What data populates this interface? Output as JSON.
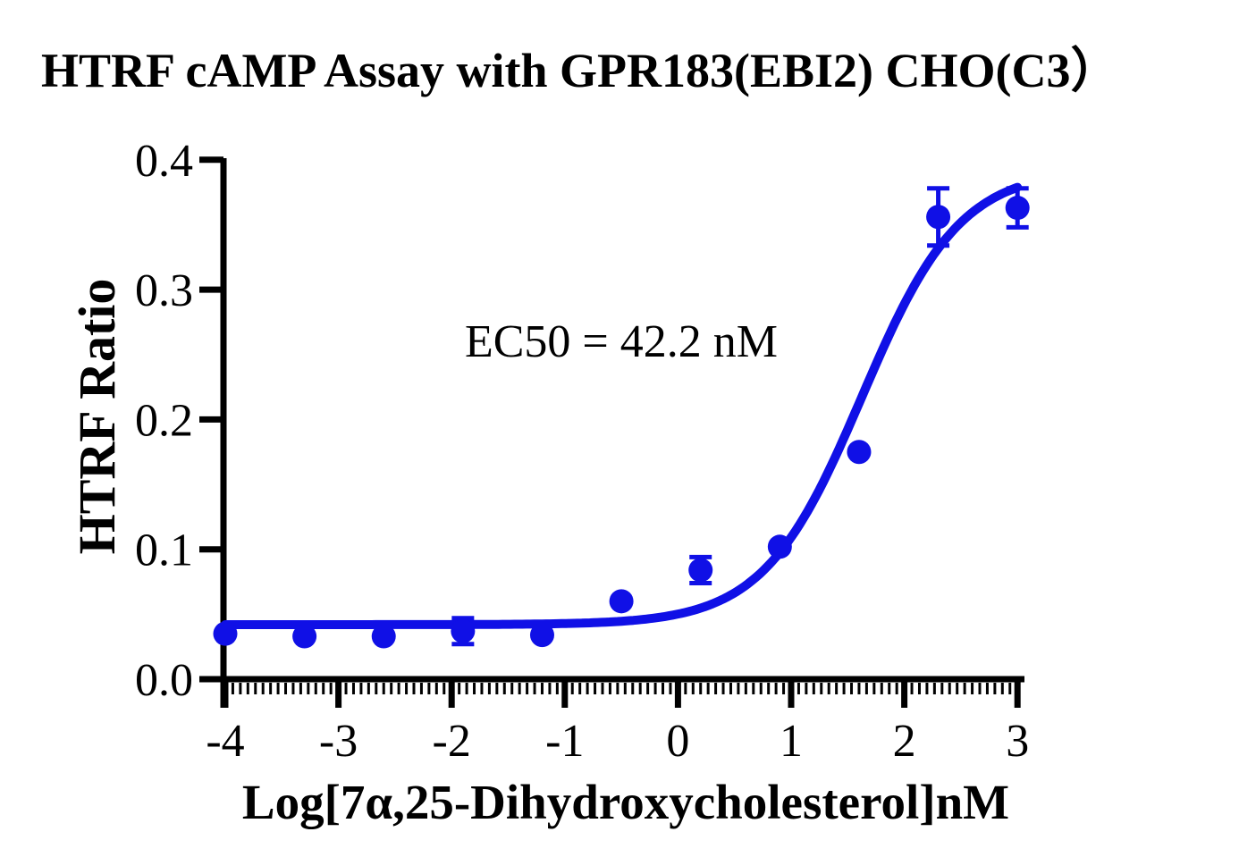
{
  "figure": {
    "background": "#FFFFFF",
    "annotation_text": "EC50 = 42.2 nM"
  },
  "chart_data": {
    "type": "scatter",
    "title": "HTRF cAMP Assay with GPR183(EBI2) CHO(C3）",
    "xlabel": "Log[7α,25-Dihydroxycholesterol]nM",
    "ylabel": "HTRF Ratio",
    "xlim": [
      -4,
      3
    ],
    "ylim": [
      0.0,
      0.4
    ],
    "x_ticks": [
      -4,
      -3,
      -2,
      -1,
      0,
      1,
      2,
      3
    ],
    "x_tick_labels": [
      "-4",
      "-3",
      "-2",
      "-1",
      "0",
      "1",
      "2",
      "3"
    ],
    "y_ticks": [
      0.0,
      0.1,
      0.2,
      0.3,
      0.4
    ],
    "y_tick_labels": [
      "0.0",
      "0.1",
      "0.2",
      "0.3",
      "0.4"
    ],
    "grid": false,
    "legend_position": "none",
    "colors": {
      "series": "#1010E6",
      "axis": "#000000"
    },
    "series": [
      {
        "name": "7α,25-Dihydroxycholesterol",
        "marker": "circle",
        "color": "#1010E6",
        "points": [
          {
            "x": -4.0,
            "y": 0.035,
            "err": null
          },
          {
            "x": -3.3,
            "y": 0.033,
            "err": null
          },
          {
            "x": -2.6,
            "y": 0.033,
            "err": null
          },
          {
            "x": -1.9,
            "y": 0.037,
            "err": 0.01
          },
          {
            "x": -1.2,
            "y": 0.034,
            "err": null
          },
          {
            "x": -0.5,
            "y": 0.06,
            "err": null
          },
          {
            "x": 0.2,
            "y": 0.084,
            "err": 0.01
          },
          {
            "x": 0.9,
            "y": 0.102,
            "err": null
          },
          {
            "x": 1.6,
            "y": 0.175,
            "err": null
          },
          {
            "x": 2.3,
            "y": 0.356,
            "err": 0.022
          },
          {
            "x": 3.0,
            "y": 0.363,
            "err": 0.015
          }
        ]
      }
    ],
    "curve_fit": {
      "model": "4PL-logistic",
      "bottom": 0.042,
      "top": 0.393,
      "logEC50": 1.6253,
      "hill": 1.0,
      "x_range": [
        -4.0,
        3.0
      ],
      "ec50_nM": 42.2,
      "label": "EC50 = 42.2 nM"
    }
  }
}
